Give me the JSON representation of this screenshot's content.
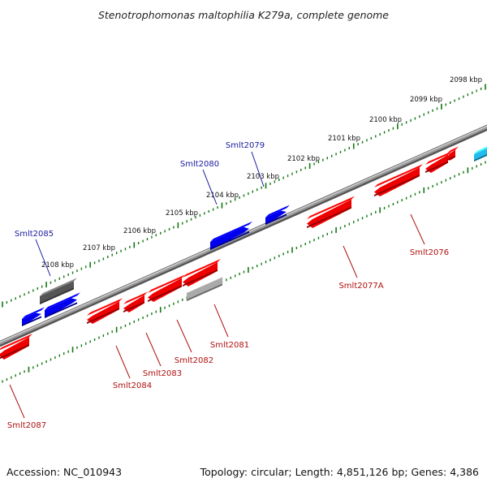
{
  "title": "Stenotrophomonas maltophilia K279a, complete genome",
  "footer": {
    "accession": "Accession: NC_010943",
    "topology": "Topology: circular; Length: 4,851,126 bp; Genes: 4,386"
  },
  "colors": {
    "forward_gene": "#0000ee",
    "reverse_gene": "#ee0000",
    "pseudo_dark": "#555555",
    "pseudo_light": "#aaaaaa",
    "rna_gene": "#22bbee",
    "tick": "#117711",
    "backbone": "#888888"
  },
  "kbp_labels": [
    "2098 kbp",
    "2099 kbp",
    "2100 kbp",
    "2101 kbp",
    "2102 kbp",
    "2103 kbp",
    "2104 kbp",
    "2105 kbp",
    "2106 kbp",
    "2107 kbp",
    "2108 kbp"
  ],
  "gene_labels": {
    "smlt2079": "Smlt2079",
    "smlt2080": "Smlt2080",
    "smlt2085": "Smlt2085",
    "smlt2076": "Smlt2076",
    "smlt2077a": "Smlt2077A",
    "smlt2081": "Smlt2081",
    "smlt2082": "Smlt2082",
    "smlt2083": "Smlt2083",
    "smlt2084": "Smlt2084",
    "smlt2087": "Smlt2087"
  }
}
